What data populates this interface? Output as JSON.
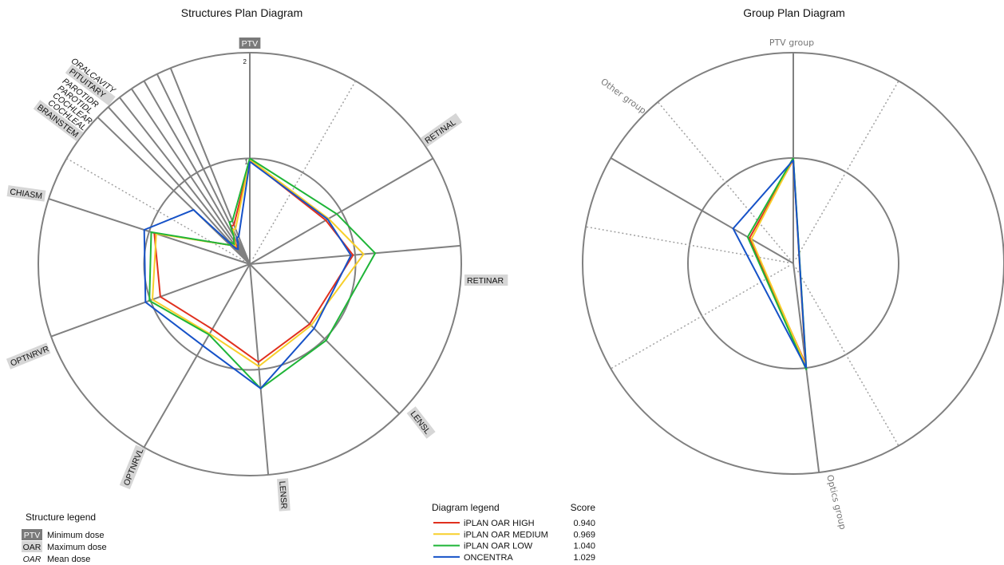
{
  "chart_data": [
    {
      "type": "radar",
      "title": "Structures Plan Diagram",
      "axes": [
        "PTV",
        "RETINAL",
        "RETINAR",
        "LENSL",
        "LENSR",
        "OPTNRVL",
        "OPTNRVR",
        "CHIASM",
        "BRAINSTEM",
        "COCHLEAL",
        "COCHLEAR",
        "PAROTIDL",
        "PAROTIDR",
        "PITUITARY",
        "ORALCAVITY"
      ],
      "axis_style": [
        "min",
        "max",
        "max",
        "max",
        "max",
        "max",
        "max",
        "max",
        "max",
        "mean",
        "mean",
        "mean",
        "mean",
        "max",
        "mean"
      ],
      "rlim": [
        0,
        2
      ],
      "ring_ticks": [
        "1",
        "2"
      ],
      "series": [
        {
          "name": "iPLAN OAR HIGH",
          "color": "#e0301e",
          "values": [
            0.98,
            0.83,
            0.98,
            0.8,
            0.93,
            0.71,
            0.9,
            0.95,
            0.26,
            0.28,
            0.2,
            0.25,
            0.3,
            0.4,
            0.4
          ]
        },
        {
          "name": "iPLAN OAR MEDIUM",
          "color": "#f7cf2b",
          "values": [
            0.99,
            0.86,
            1.08,
            0.82,
            0.97,
            0.76,
            0.98,
            0.93,
            0.26,
            0.28,
            0.22,
            0.26,
            0.3,
            0.36,
            0.36
          ]
        },
        {
          "name": "iPLAN OAR LOW",
          "color": "#1fb538",
          "values": [
            1.0,
            0.95,
            1.19,
            1.02,
            1.18,
            0.77,
            1.01,
            0.98,
            0.26,
            0.28,
            0.24,
            0.27,
            0.3,
            0.44,
            0.44
          ]
        },
        {
          "name": "ONCENTRA",
          "color": "#1652c8",
          "values": [
            0.97,
            0.85,
            0.96,
            0.86,
            1.18,
            0.89,
            1.05,
            1.05,
            0.74,
            0.2,
            0.18,
            0.2,
            0.22,
            0.28,
            0.28
          ]
        }
      ]
    },
    {
      "type": "radar",
      "title": "Group Plan Diagram",
      "axes": [
        "PTV group",
        "Optics group",
        "Other group"
      ],
      "rlim": [
        0,
        2
      ],
      "series": [
        {
          "name": "iPLAN OAR HIGH",
          "color": "#e0301e",
          "values": [
            0.98,
            0.96,
            0.48
          ]
        },
        {
          "name": "iPLAN OAR MEDIUM",
          "color": "#f7cf2b",
          "values": [
            0.99,
            0.98,
            0.46
          ]
        },
        {
          "name": "iPLAN OAR LOW",
          "color": "#1fb538",
          "values": [
            1.0,
            1.02,
            0.5
          ]
        },
        {
          "name": "ONCENTRA",
          "color": "#1652c8",
          "values": [
            0.98,
            1.0,
            0.66
          ]
        }
      ]
    }
  ],
  "structure_legend": {
    "title": "Structure legend",
    "items": [
      {
        "tag": "PTV",
        "style": "min",
        "text": "Minimum dose"
      },
      {
        "tag": "OAR",
        "style": "max",
        "text": "Maximum dose"
      },
      {
        "tag": "OAR",
        "style": "mean",
        "text": "Mean dose"
      }
    ]
  },
  "diagram_legend": {
    "title": "Diagram legend",
    "score_header": "Score",
    "items": [
      {
        "name": "iPLAN OAR HIGH",
        "color": "#e0301e",
        "score": "0.940"
      },
      {
        "name": "iPLAN OAR MEDIUM",
        "color": "#f7cf2b",
        "score": "0.969"
      },
      {
        "name": "iPLAN OAR LOW",
        "color": "#1fb538",
        "score": "1.040"
      },
      {
        "name": "ONCENTRA",
        "color": "#1652c8",
        "score": "1.029"
      }
    ]
  }
}
